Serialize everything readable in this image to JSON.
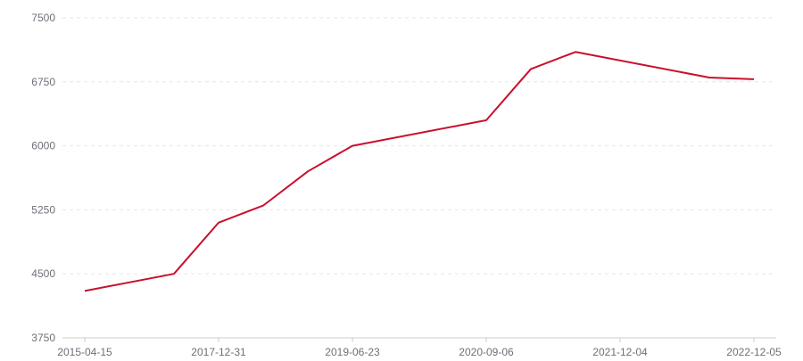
{
  "chart_data": {
    "type": "line",
    "categories": [
      "2015-04-15",
      "",
      "",
      "2017-12-31",
      "",
      "",
      "2019-06-23",
      "",
      "",
      "2020-09-06",
      "",
      "",
      "2021-12-04",
      "",
      "",
      "2022-12-05"
    ],
    "values": [
      4300,
      null,
      4500,
      5100,
      5300,
      5700,
      6000,
      null,
      null,
      6300,
      6900,
      7100,
      null,
      null,
      6800,
      6780
    ],
    "y_ticks": [
      3750,
      4500,
      5250,
      6000,
      6750,
      7500
    ],
    "ylim": [
      3750,
      7500
    ],
    "grid": true,
    "colors": {
      "line": "#c8102e",
      "grid": "#e6e6e6",
      "axis": "#cccccc",
      "label": "#6e7079"
    }
  }
}
